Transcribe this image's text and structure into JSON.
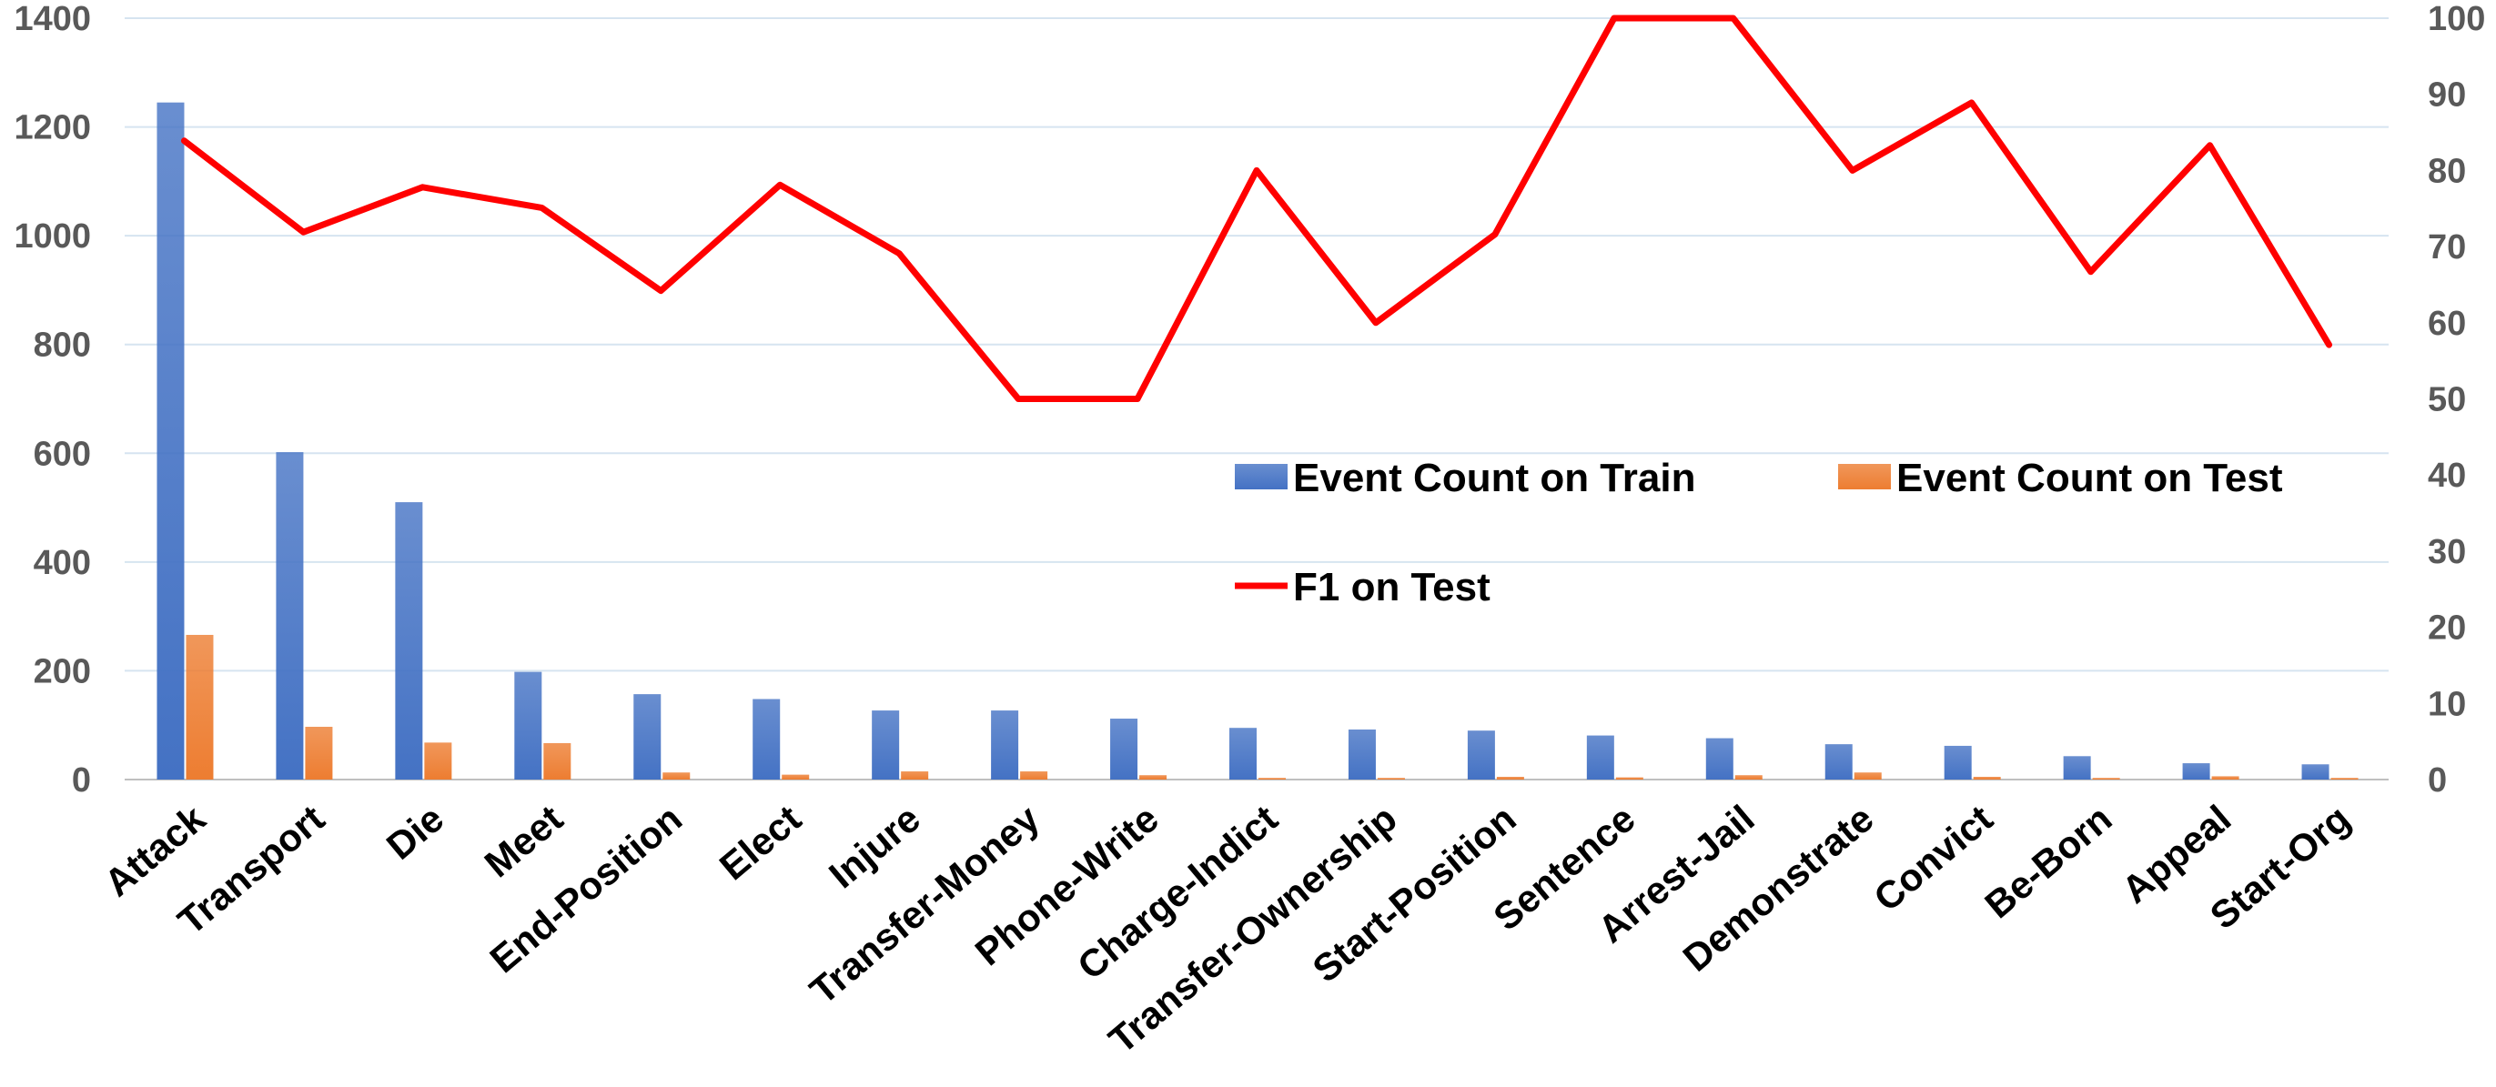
{
  "chart_data": {
    "type": "bar",
    "categories": [
      "Attack",
      "Transport",
      "Die",
      "Meet",
      "End-Position",
      "Elect",
      "Injure",
      "Transfer-Money",
      "Phone-Write",
      "Charge-Indict",
      "Transfer-Ownership",
      "Start-Position",
      "Sentence",
      "Arrest-Jail",
      "Demonstrate",
      "Convict",
      "Be-Born",
      "Appeal",
      "Start-Org"
    ],
    "series": [
      {
        "name": "Event Count on Train",
        "kind": "bar",
        "axis": "left",
        "color": "#4472C4",
        "values": [
          1245,
          602,
          510,
          198,
          157,
          148,
          127,
          127,
          112,
          95,
          92,
          90,
          81,
          76,
          65,
          62,
          43,
          30,
          28
        ]
      },
      {
        "name": "Event Count on Test",
        "kind": "bar",
        "axis": "left",
        "color": "#ED7D31",
        "values": [
          266,
          97,
          68,
          67,
          13,
          9,
          15,
          15,
          8,
          3,
          3,
          5,
          4,
          8,
          13,
          5,
          3,
          6,
          3
        ]
      },
      {
        "name": "F1 on Test",
        "kind": "line",
        "axis": "right",
        "color": "#FF0000",
        "values": [
          83.9,
          71.9,
          77.8,
          75.1,
          64.2,
          78.1,
          69.1,
          50.0,
          50.0,
          80.0,
          60.0,
          71.6,
          100.0,
          100.0,
          80.0,
          88.9,
          66.7,
          83.3,
          57.1
        ]
      }
    ],
    "y_left": {
      "min": 0,
      "max": 1400,
      "ticks": [
        "0",
        "200",
        "400",
        "600",
        "800",
        "1000",
        "1200",
        "1400"
      ]
    },
    "y_right": {
      "min": 0,
      "max": 100,
      "ticks": [
        "0",
        "10",
        "20",
        "30",
        "40",
        "50",
        "60",
        "70",
        "80",
        "90",
        "100"
      ]
    },
    "grid": true,
    "legend": "inside-right"
  }
}
